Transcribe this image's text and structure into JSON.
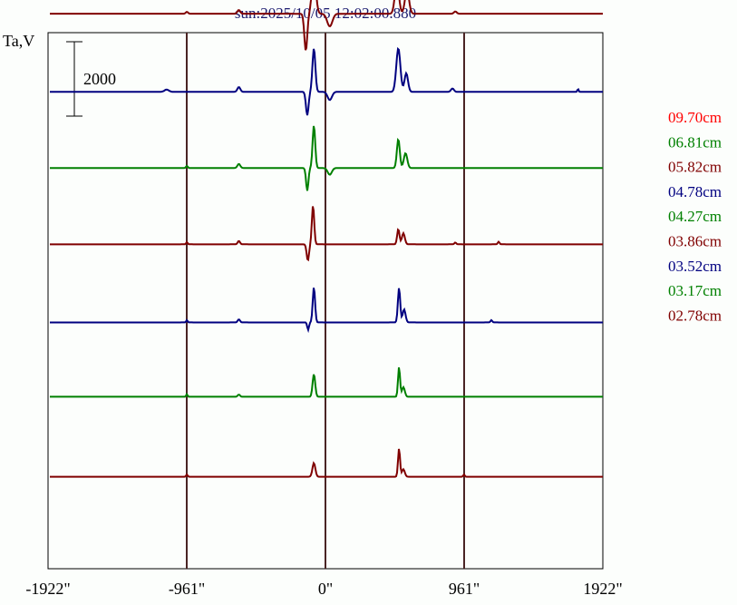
{
  "chart_data": {
    "type": "line",
    "title": "sun:2025/10/05 12:02:00.880",
    "ylabel": "Ta,V",
    "scale_bar_label": "2000",
    "scale_bar_value": 2000,
    "xlim": [
      -1922,
      1922
    ],
    "x_ticks": [
      {
        "value": -1922,
        "label": "-1922\""
      },
      {
        "value": -961,
        "label": "-961\""
      },
      {
        "value": 0,
        "label": "0\""
      },
      {
        "value": 961,
        "label": "961\""
      },
      {
        "value": 1922,
        "label": "1922\""
      }
    ],
    "vertical_lines": [
      -961,
      0,
      961
    ],
    "series": [
      {
        "name": "09.70cm",
        "color": "#ff0000",
        "offset": 18000,
        "features": [
          [
            -70,
            1070,
            22
          ],
          [
            -146,
            -380,
            18
          ],
          [
            44,
            -330,
            25
          ],
          [
            560,
            1510,
            30
          ],
          [
            464,
            -330,
            15
          ],
          [
            -600,
            -120,
            30
          ],
          [
            -380,
            -130,
            20
          ],
          [
            -700,
            80,
            12
          ]
        ]
      },
      {
        "name": "06.81cm",
        "color": "#008000",
        "offset": 15900,
        "features": [
          [
            -76,
            1100,
            16
          ],
          [
            -134,
            -760,
            12
          ],
          [
            20,
            -420,
            20
          ],
          [
            500,
            850,
            25
          ],
          [
            565,
            880,
            18
          ],
          [
            -600,
            120,
            12
          ],
          [
            -960,
            60,
            8
          ],
          [
            940,
            120,
            20
          ]
        ]
      },
      {
        "name": "05.82cm",
        "color": "#800000",
        "offset": 13850,
        "features": [
          [
            -80,
            1070,
            14
          ],
          [
            -136,
            -1000,
            10
          ],
          [
            30,
            -340,
            18
          ],
          [
            495,
            850,
            14
          ],
          [
            565,
            640,
            14
          ],
          [
            -600,
            100,
            10
          ],
          [
            -960,
            50,
            8
          ],
          [
            900,
            60,
            10
          ]
        ]
      },
      {
        "name": "04.78cm",
        "color": "#000080",
        "offset": 11750,
        "features": [
          [
            -80,
            1170,
            10
          ],
          [
            -126,
            -630,
            9
          ],
          [
            30,
            -220,
            15
          ],
          [
            505,
            1170,
            14
          ],
          [
            560,
            500,
            12
          ],
          [
            -600,
            130,
            10
          ],
          [
            -1100,
            60,
            15
          ],
          [
            880,
            90,
            10
          ],
          [
            1750,
            80,
            4
          ]
        ]
      },
      {
        "name": "04.27cm",
        "color": "#008000",
        "offset": 9700,
        "features": [
          [
            -80,
            1150,
            9
          ],
          [
            -126,
            -610,
            8
          ],
          [
            30,
            -180,
            14
          ],
          [
            505,
            780,
            10
          ],
          [
            555,
            400,
            12
          ],
          [
            -600,
            110,
            10
          ],
          [
            -960,
            60,
            6
          ]
        ]
      },
      {
        "name": "03.86cm",
        "color": "#800000",
        "offset": 7650,
        "features": [
          [
            -86,
            1050,
            8
          ],
          [
            -122,
            -440,
            8
          ],
          [
            505,
            410,
            8
          ],
          [
            540,
            300,
            10
          ],
          [
            -600,
            90,
            8
          ],
          [
            -960,
            60,
            5
          ],
          [
            1200,
            70,
            6
          ],
          [
            900,
            50,
            6
          ]
        ]
      },
      {
        "name": "03.52cm",
        "color": "#000080",
        "offset": 5550,
        "features": [
          [
            -80,
            950,
            8
          ],
          [
            -120,
            -200,
            6
          ],
          [
            510,
            930,
            8
          ],
          [
            545,
            350,
            10
          ],
          [
            -600,
            80,
            8
          ],
          [
            -960,
            60,
            5
          ],
          [
            1150,
            60,
            6
          ]
        ]
      },
      {
        "name": "03.17cm",
        "color": "#008000",
        "offset": 3550,
        "features": [
          [
            -80,
            610,
            9
          ],
          [
            510,
            800,
            7
          ],
          [
            540,
            260,
            10
          ],
          [
            -600,
            60,
            8
          ],
          [
            -960,
            70,
            5
          ]
        ]
      },
      {
        "name": "02.78cm",
        "color": "#800000",
        "offset": 1400,
        "features": [
          [
            -80,
            370,
            10
          ],
          [
            510,
            760,
            7
          ],
          [
            540,
            200,
            10
          ],
          [
            -960,
            60,
            5
          ],
          [
            960,
            60,
            5
          ]
        ]
      }
    ]
  }
}
